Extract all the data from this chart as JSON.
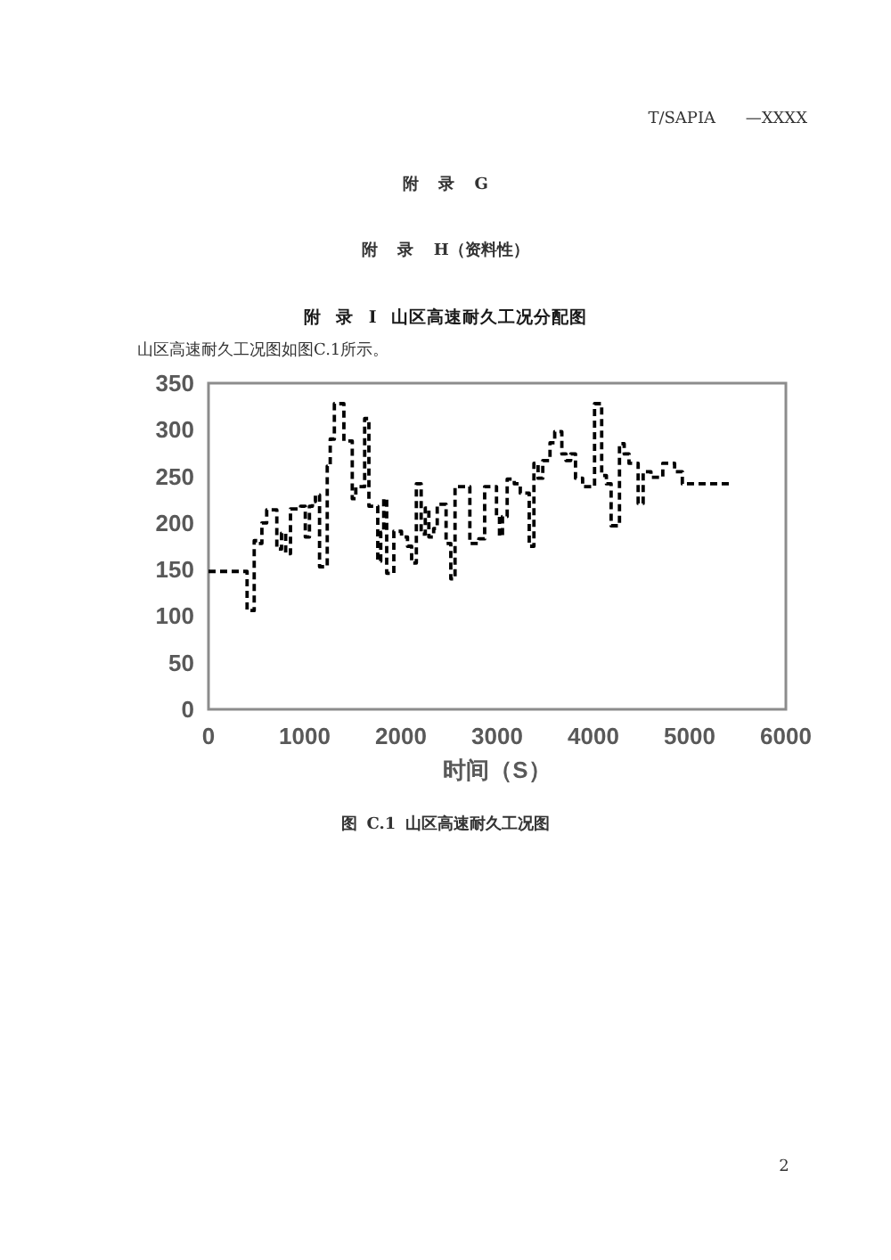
{
  "chart_data": {
    "type": "step",
    "title": "附 录 I 山区高速耐久工况分配图",
    "xlabel": "时间（S）",
    "annotations": [
      "T/SAPIA —XXXX",
      "附 录 G",
      "附 录 H（资料性）",
      "山区高速耐久工况图如图C.1所示。",
      "图 C.1 山区高速耐久工况图",
      "2"
    ],
    "xlim": [
      0,
      6000
    ],
    "xticks": [
      0,
      1000,
      2000,
      3000,
      4000,
      5000,
      6000
    ],
    "ylim": [
      0,
      350
    ],
    "yticks": [
      0,
      50,
      100,
      150,
      200,
      250,
      300,
      350
    ],
    "line_style": "dashed",
    "series": [
      {
        "color": "#000000",
        "x": [
          0,
          401,
          475,
          512,
          555,
          605,
          710,
          759,
          802,
          852,
          957,
          1006,
          1049,
          1080,
          1111,
          1154,
          1234,
          1265,
          1308,
          1407,
          1494,
          1531,
          1623,
          1667,
          1759,
          1790,
          1821,
          1852,
          1926,
          2006,
          2068,
          2111,
          2160,
          2210,
          2253,
          2290,
          2340,
          2377,
          2469,
          2518,
          2562,
          2716,
          2809,
          2870,
          2993,
          3024,
          3055,
          3104,
          3178,
          3240,
          3333,
          3382,
          3425,
          3474,
          3549,
          3598,
          3672,
          3715,
          3764,
          3814,
          3888,
          4012,
          4086,
          4135,
          4184,
          4271,
          4320,
          4370,
          4465,
          4517,
          4598,
          4721,
          4844,
          4924,
          5430
        ],
        "values": [
          148,
          106,
          181,
          178,
          200,
          214,
          172,
          189,
          167,
          215,
          218,
          185,
          218,
          223,
          230,
          153,
          261,
          290,
          328,
          288,
          226,
          239,
          312,
          218,
          159,
          190,
          226,
          146,
          191,
          185,
          175,
          157,
          242,
          188,
          216,
          185,
          194,
          220,
          178,
          140,
          239,
          178,
          183,
          239,
          207,
          186,
          207,
          247,
          242,
          232,
          175,
          264,
          248,
          267,
          286,
          298,
          274,
          267,
          274,
          248,
          239,
          328,
          251,
          242,
          197,
          285,
          274,
          264,
          221,
          255,
          249,
          264,
          255,
          242,
          242
        ]
      }
    ]
  }
}
